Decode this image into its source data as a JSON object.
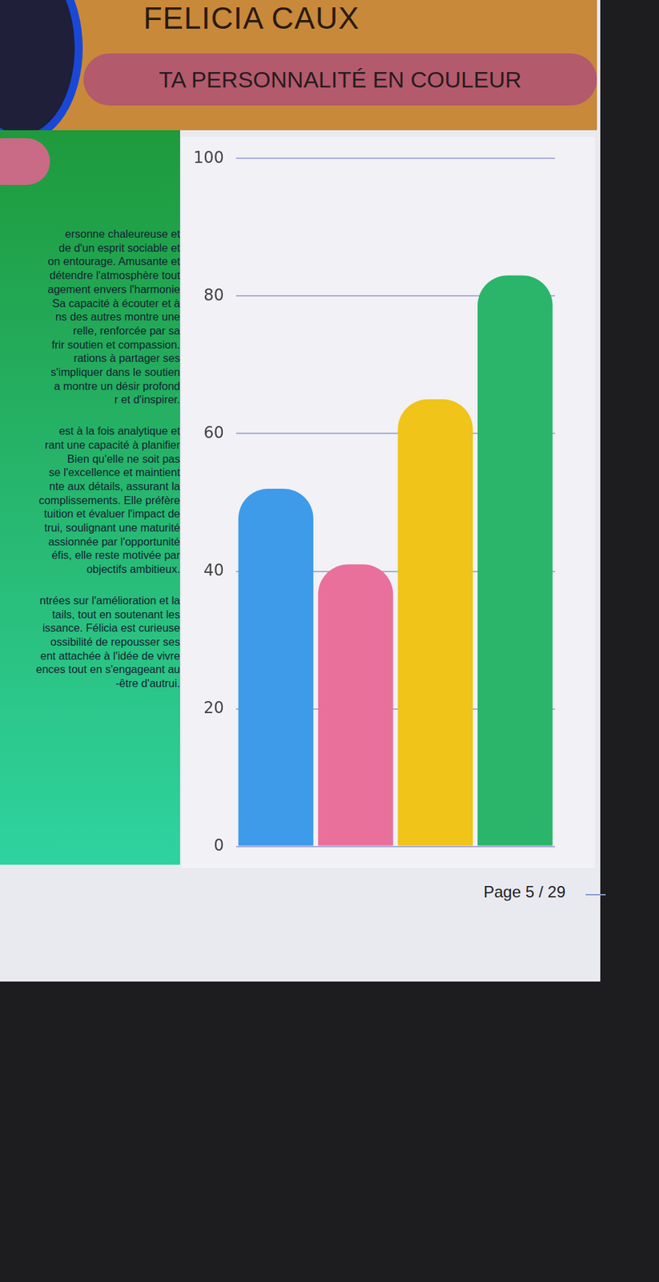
{
  "page": {
    "name": "FELICIA CAUX",
    "subtitle": "TA PERSONNALITÉ EN COULEUR",
    "footer": "Page 5 / 29",
    "paragraphs": [
      [
        "ersonne chaleureuse et",
        "de d'un esprit sociable et",
        "on entourage. Amusante et",
        "détendre l'atmosphère tout",
        "agement envers l'harmonie",
        "Sa capacité à écouter et à",
        "ns des autres montre une",
        "relle, renforcée par sa",
        "frir soutien et compassion.",
        "rations à partager ses",
        "s'impliquer dans le soutien",
        "a montre un désir profond",
        "r et d'inspirer."
      ],
      [
        "est à la fois analytique et",
        "rant une capacité à planifier",
        "Bien qu'elle ne soit pas",
        "se l'excellence et maintient",
        "nte aux détails, assurant la",
        "complissements. Elle préfère",
        "tuition et évaluer l'impact de",
        "trui, soulignant une maturité",
        "assionnée par l'opportunité",
        "éfis, elle reste motivée par",
        "objectifs ambitieux."
      ],
      [
        "ntrées sur l'amélioration et la",
        "tails, tout en soutenant les",
        "issance. Félicia est curieuse",
        "ossibilité de repousser ses",
        "ent attachée à l'idée de vivre",
        "ences tout en s'engageant au",
        "-être d'autrui."
      ]
    ]
  },
  "chart_data": {
    "type": "bar",
    "categories": [
      null,
      null,
      null,
      null
    ],
    "values": [
      52,
      41,
      65,
      83
    ],
    "colors": [
      "#3d9be9",
      "#e9709a",
      "#f0c419",
      "#2bb56a"
    ],
    "ylim": [
      0,
      100
    ],
    "yticks": [
      0,
      20,
      40,
      60,
      80,
      100
    ],
    "grid": true,
    "tick_labels": "y"
  }
}
